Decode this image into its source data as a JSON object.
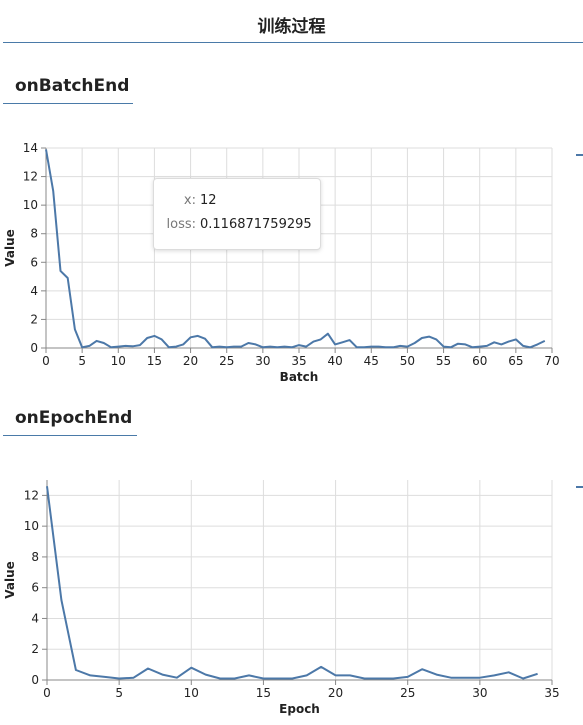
{
  "page": {
    "title": "训练过程"
  },
  "sections": [
    {
      "heading": "onBatchEnd"
    },
    {
      "heading": "onEpochEnd"
    }
  ],
  "tooltip": {
    "x_key": "x:",
    "x_value": "12",
    "loss_key": "loss:",
    "loss_value": "0.116871759295"
  },
  "colors": {
    "line": "#4c78a8",
    "grid": "#dddddd",
    "axis": "#888888",
    "rule": "#4a7aa8"
  },
  "chart_data": [
    {
      "type": "line",
      "title": "",
      "xlabel": "Batch",
      "ylabel": "Value",
      "xlim": [
        0,
        70
      ],
      "ylim": [
        0,
        14
      ],
      "x_ticks": [
        0,
        5,
        10,
        15,
        20,
        25,
        30,
        35,
        40,
        45,
        50,
        55,
        60,
        65,
        70
      ],
      "y_ticks": [
        0,
        2,
        4,
        6,
        8,
        10,
        12,
        14
      ],
      "grid": true,
      "series": [
        {
          "x": [
            0,
            1,
            2,
            3,
            4,
            5,
            6,
            7,
            8,
            9,
            10,
            11,
            12,
            13,
            14,
            15,
            16,
            17,
            18,
            19,
            20,
            21,
            22,
            23,
            24,
            25,
            26,
            27,
            28,
            29,
            30,
            31,
            32,
            33,
            34,
            35,
            36,
            37,
            38,
            39,
            40,
            41,
            42,
            43,
            44,
            45,
            46,
            47,
            48,
            49,
            50,
            51,
            52,
            53,
            54,
            55,
            56,
            57,
            58,
            59,
            60,
            61,
            62,
            63,
            64,
            65,
            66,
            67,
            68,
            69
          ],
          "values": [
            13.9,
            11.0,
            5.4,
            4.9,
            1.3,
            0.05,
            0.15,
            0.5,
            0.35,
            0.05,
            0.1,
            0.15,
            0.12,
            0.2,
            0.7,
            0.85,
            0.6,
            0.05,
            0.1,
            0.25,
            0.75,
            0.85,
            0.65,
            0.05,
            0.1,
            0.05,
            0.1,
            0.1,
            0.35,
            0.25,
            0.05,
            0.1,
            0.05,
            0.1,
            0.05,
            0.2,
            0.1,
            0.45,
            0.6,
            1.0,
            0.25,
            0.4,
            0.55,
            0.05,
            0.05,
            0.1,
            0.1,
            0.05,
            0.05,
            0.15,
            0.1,
            0.35,
            0.7,
            0.8,
            0.6,
            0.1,
            0.05,
            0.3,
            0.25,
            0.05,
            0.1,
            0.15,
            0.4,
            0.25,
            0.45,
            0.6,
            0.15,
            0.05,
            0.25,
            0.5
          ]
        }
      ]
    },
    {
      "type": "line",
      "title": "",
      "xlabel": "Epoch",
      "ylabel": "Value",
      "xlim": [
        0,
        35
      ],
      "ylim": [
        0,
        13
      ],
      "x_ticks": [
        0,
        5,
        10,
        15,
        20,
        25,
        30,
        35
      ],
      "y_ticks": [
        0,
        2,
        4,
        6,
        8,
        10,
        12
      ],
      "grid": true,
      "series": [
        {
          "x": [
            0,
            1,
            2,
            3,
            4,
            5,
            6,
            7,
            8,
            9,
            10,
            11,
            12,
            13,
            14,
            15,
            16,
            17,
            18,
            19,
            20,
            21,
            22,
            23,
            24,
            25,
            26,
            27,
            28,
            29,
            30,
            31,
            32,
            33,
            34
          ],
          "values": [
            12.6,
            5.2,
            0.65,
            0.3,
            0.2,
            0.1,
            0.15,
            0.75,
            0.35,
            0.15,
            0.8,
            0.35,
            0.1,
            0.1,
            0.3,
            0.1,
            0.1,
            0.1,
            0.3,
            0.85,
            0.3,
            0.3,
            0.1,
            0.1,
            0.1,
            0.2,
            0.7,
            0.35,
            0.15,
            0.15,
            0.15,
            0.3,
            0.5,
            0.1,
            0.4
          ]
        }
      ]
    }
  ]
}
